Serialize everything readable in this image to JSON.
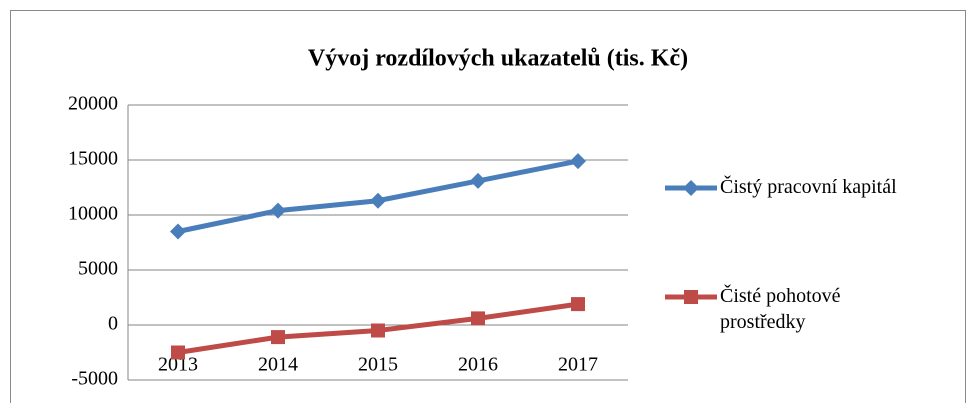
{
  "chart_data": {
    "type": "line",
    "title": "Vývoj rozdílových ukazatelů (tis. Kč)",
    "categories": [
      "2013",
      "2014",
      "2015",
      "2016",
      "2017"
    ],
    "series": [
      {
        "name": "Čistý pracovní kapitál",
        "color": "#4a7ebb",
        "marker": "diamond",
        "values": [
          8500,
          10400,
          11300,
          13100,
          14900
        ]
      },
      {
        "name": "Čisté pohotové prostředky",
        "color": "#be4b48",
        "marker": "square",
        "values": [
          -2500,
          -1100,
          -500,
          600,
          1900
        ]
      }
    ],
    "ylim": [
      -5000,
      20000
    ],
    "yticks": [
      -5000,
      0,
      5000,
      10000,
      15000,
      20000
    ],
    "grid": true,
    "legend": "right"
  }
}
